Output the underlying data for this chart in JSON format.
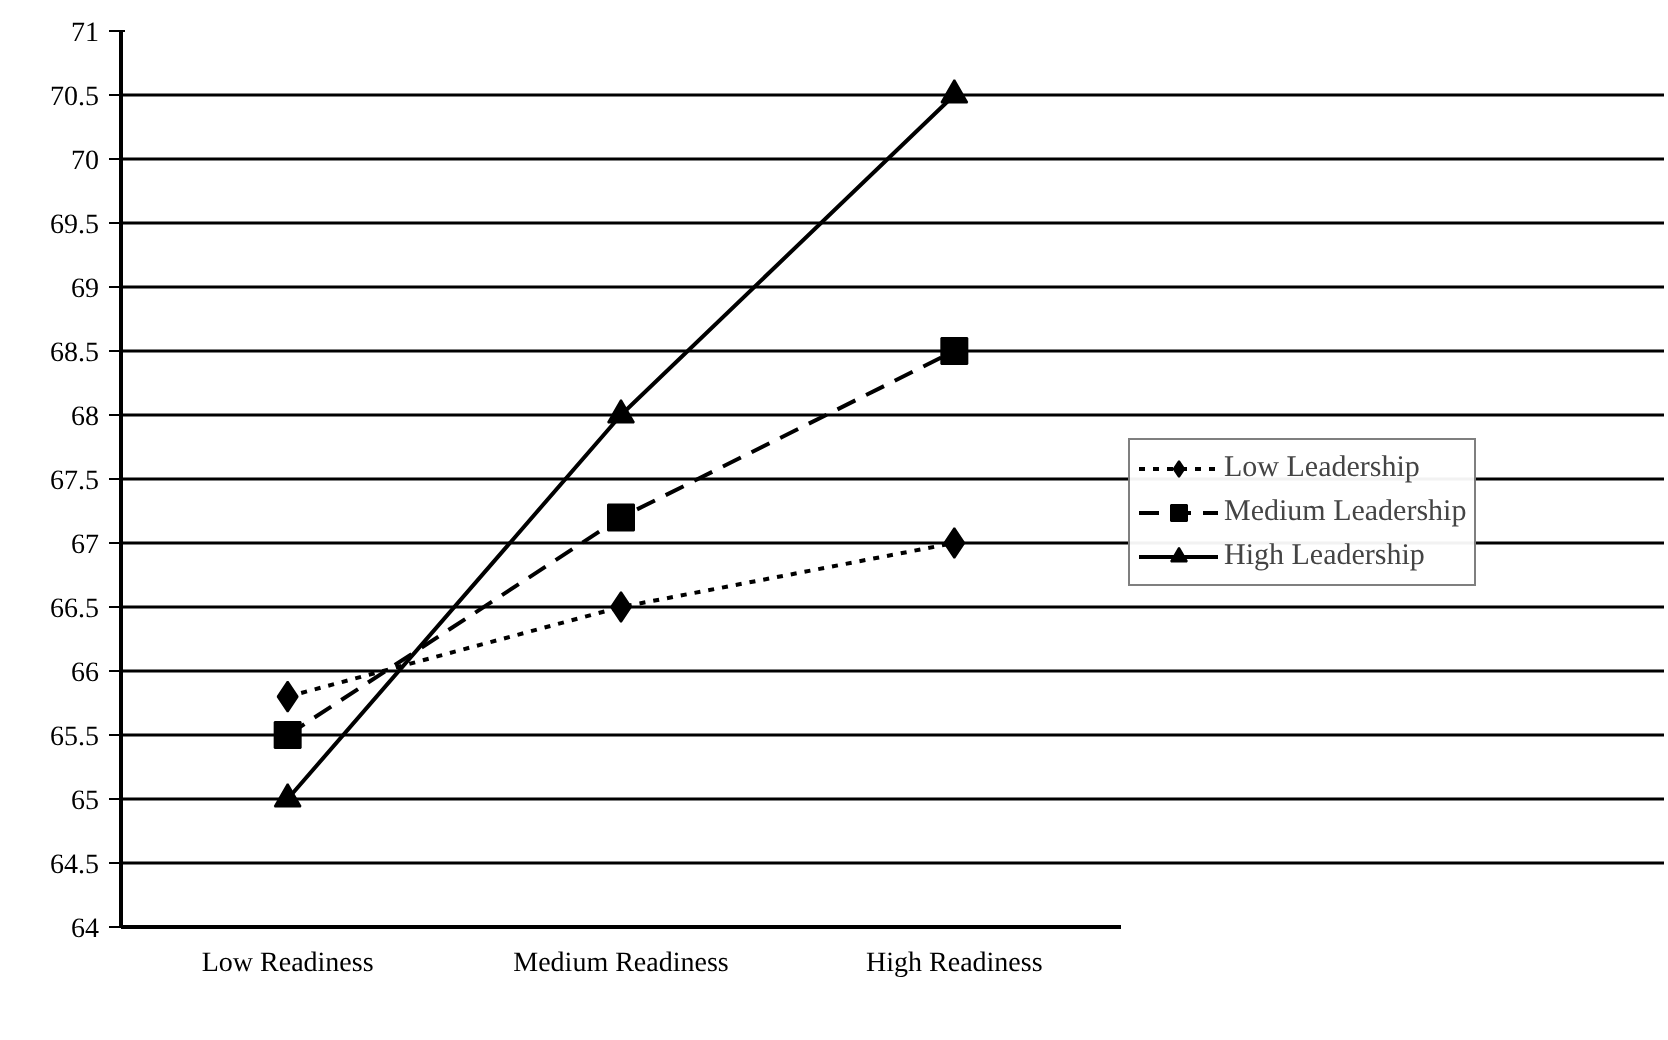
{
  "chart_data": {
    "type": "line",
    "categories": [
      "Low Readiness",
      "Medium Readiness",
      "High Readiness"
    ],
    "series": [
      {
        "name": "Low Leadership",
        "color": "#000000",
        "values": [
          65.8,
          66.5,
          67.0
        ],
        "marker": "diamond",
        "line_style": "dotted"
      },
      {
        "name": "Medium Leadership",
        "color": "#000000",
        "values": [
          65.5,
          67.2,
          68.5
        ],
        "marker": "square",
        "line_style": "dashed"
      },
      {
        "name": "High Leadership",
        "color": "#000000",
        "values": [
          65.0,
          68.0,
          70.5
        ],
        "marker": "triangle",
        "line_style": "solid"
      }
    ],
    "ylim": [
      64,
      71
    ],
    "yticks": [
      64,
      {
        "value": 64.5,
        "label": "64.5"
      },
      65,
      {
        "value": 65.5,
        "label": "65.5"
      },
      66,
      {
        "value": 66.5,
        "label": "66.5"
      },
      67,
      {
        "value": 67.5,
        "label": "67.5"
      },
      68,
      {
        "value": 68.5,
        "label": "68.5"
      },
      69,
      {
        "value": 69.5,
        "label": "69.5"
      },
      70,
      {
        "value": 70.5,
        "label": "70.5"
      },
      71
    ],
    "grid": "y",
    "legend": "right"
  }
}
